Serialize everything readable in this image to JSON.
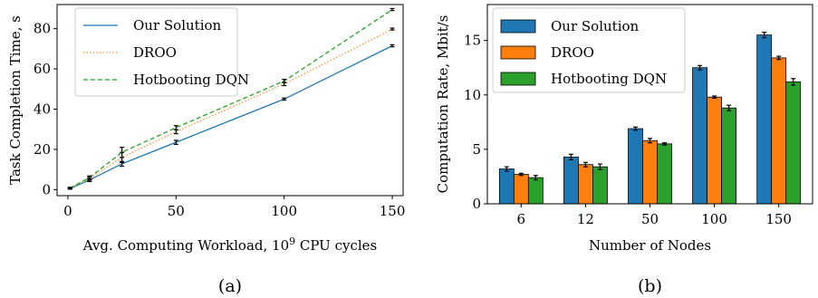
{
  "chart_data": [
    {
      "type": "line",
      "panel_label": "(a)",
      "xlabel_prefix": "Avg. Computing Workload, 10",
      "xlabel_exponent": "9",
      "xlabel_suffix": " CPU cycles",
      "ylabel": "Task Completion Time, s",
      "xlim": [
        -5,
        155
      ],
      "ylim": [
        -3,
        92
      ],
      "xticks": [
        0,
        50,
        100,
        150
      ],
      "yticks": [
        0,
        20,
        40,
        60,
        80
      ],
      "x": [
        1,
        10,
        25,
        50,
        100,
        150
      ],
      "legend_position": "top-left",
      "series": [
        {
          "name": "Our Solution",
          "color": "#1f77b4",
          "dash": "solid",
          "values": [
            0.5,
            4.8,
            12.8,
            23.5,
            45.0,
            71.5
          ],
          "err": [
            0.3,
            0.8,
            1.2,
            1.0,
            0.5,
            0.5
          ]
        },
        {
          "name": "DROO",
          "color": "#ff7f0e",
          "dash": "dotted",
          "values": [
            0.8,
            5.5,
            16.0,
            28.8,
            52.5,
            79.8
          ],
          "err": [
            0.3,
            0.8,
            2.5,
            1.0,
            0.8,
            0.5
          ]
        },
        {
          "name": "Hotbooting DQN",
          "color": "#2ca02c",
          "dash": "dashed",
          "values": [
            0.8,
            6.0,
            18.5,
            30.8,
            54.0,
            89.5
          ],
          "err": [
            0.3,
            0.8,
            2.5,
            1.0,
            0.8,
            0.5
          ]
        }
      ]
    },
    {
      "type": "bar",
      "panel_label": "(b)",
      "xlabel": "Number of Nodes",
      "ylabel": "Computation Rate, Mbit/s",
      "ylim": [
        0,
        18.3
      ],
      "yticks": [
        0,
        5,
        10,
        15
      ],
      "categories": [
        "6",
        "12",
        "50",
        "100",
        "150"
      ],
      "legend_position": "top-left",
      "series": [
        {
          "name": "Our Solution",
          "color": "#1f77b4",
          "values": [
            3.2,
            4.3,
            6.9,
            12.5,
            15.5
          ],
          "err": [
            0.2,
            0.25,
            0.15,
            0.2,
            0.25
          ]
        },
        {
          "name": "DROO",
          "color": "#ff7f0e",
          "values": [
            2.7,
            3.6,
            5.8,
            9.8,
            13.4
          ],
          "err": [
            0.1,
            0.2,
            0.2,
            0.1,
            0.15
          ]
        },
        {
          "name": "Hotbooting DQN",
          "color": "#2ca02c",
          "values": [
            2.4,
            3.4,
            5.5,
            8.8,
            11.2
          ],
          "err": [
            0.2,
            0.25,
            0.1,
            0.25,
            0.3
          ]
        }
      ]
    }
  ]
}
